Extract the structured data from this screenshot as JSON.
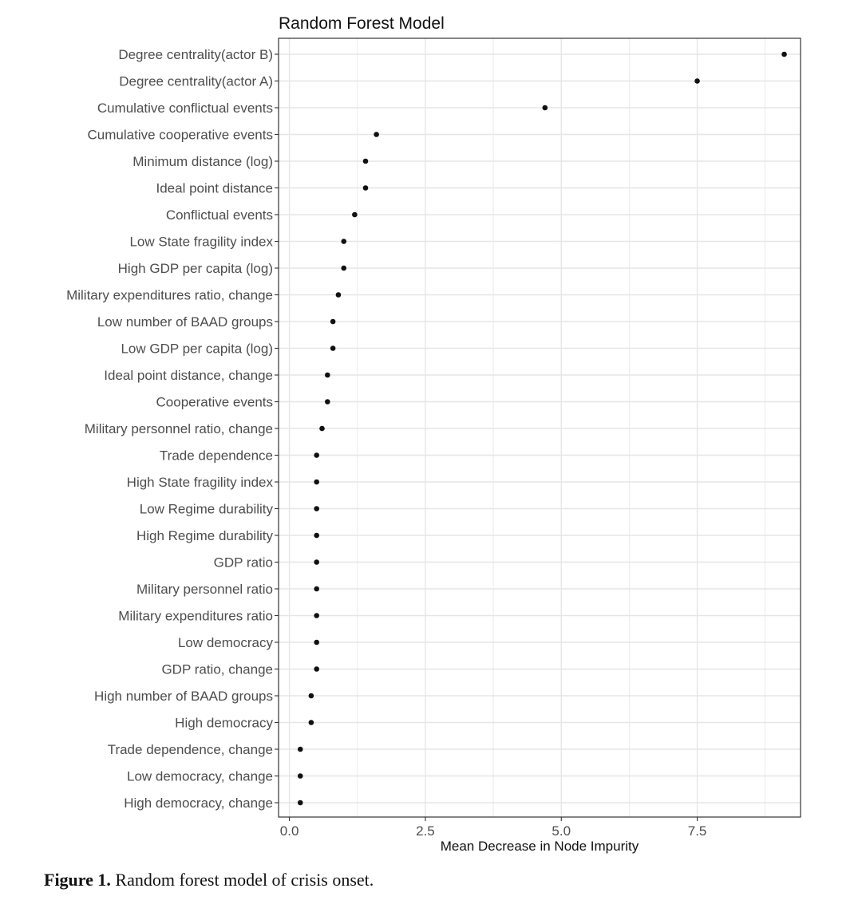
{
  "chart_data": {
    "type": "scatter",
    "title": "Random Forest Model",
    "xlabel": "Mean Decrease in Node Impurity",
    "ylabel": "",
    "xlim": [
      -0.2,
      9.4
    ],
    "xticks": [
      0.0,
      2.5,
      5.0,
      7.5
    ],
    "xtick_labels": [
      "0.0",
      "2.5",
      "5.0",
      "7.5"
    ],
    "grid": true,
    "legend": "none",
    "categories": [
      "Degree centrality(actor B)",
      "Degree centrality(actor A)",
      "Cumulative conflictual events",
      "Cumulative cooperative events",
      "Minimum distance (log)",
      "Ideal point distance",
      "Conflictual events",
      "Low State fragility index",
      "High GDP per capita (log)",
      "Military expenditures ratio, change",
      "Low number of BAAD groups",
      "Low GDP per capita (log)",
      "Ideal point distance, change",
      "Cooperative events",
      "Military personnel ratio, change",
      "Trade dependence",
      "High State fragility index",
      "Low Regime durability",
      "High Regime durability",
      "GDP ratio",
      "Military personnel ratio",
      "Military expenditures ratio",
      "Low democracy",
      "GDP ratio, change",
      "High number of BAAD groups",
      "High democracy",
      "Trade dependence, change",
      "Low democracy, change",
      "High democracy, change"
    ],
    "values": [
      9.1,
      7.5,
      4.7,
      1.6,
      1.4,
      1.4,
      1.2,
      1.0,
      1.0,
      0.9,
      0.8,
      0.8,
      0.7,
      0.7,
      0.6,
      0.5,
      0.5,
      0.5,
      0.5,
      0.5,
      0.5,
      0.5,
      0.5,
      0.5,
      0.4,
      0.4,
      0.2,
      0.2,
      0.2
    ],
    "colors": {
      "point": "#111111",
      "grid": "#e6e6e6",
      "panel_border": "#333333",
      "tick_label": "#4d4d4d"
    }
  },
  "caption": {
    "label": "Figure 1.",
    "text": " Random forest model of crisis onset."
  }
}
